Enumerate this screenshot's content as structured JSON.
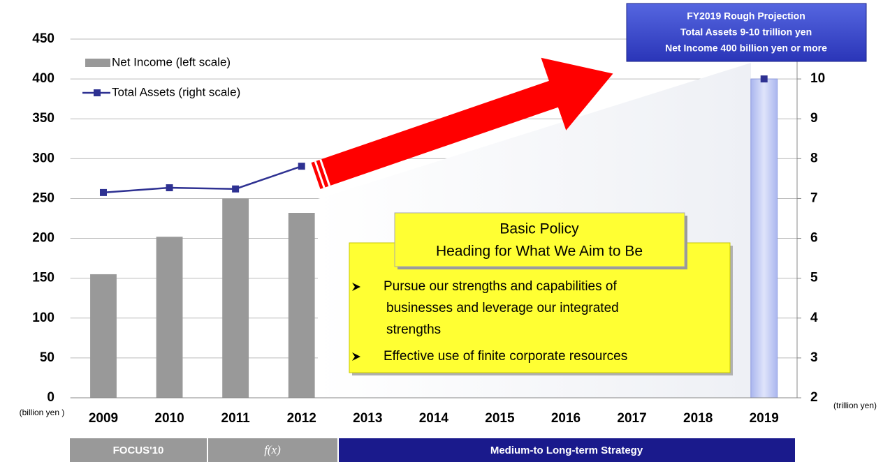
{
  "chart_data": {
    "type": "combo",
    "categories": [
      "2009",
      "2010",
      "2011",
      "2012",
      "2013",
      "2014",
      "2015",
      "2016",
      "2017",
      "2018",
      "2019"
    ],
    "series": [
      {
        "name": "Net Income (left scale)",
        "type": "bar",
        "axis": "y",
        "color": "#999999",
        "colors": [
          "#999999",
          "#999999",
          "#999999",
          "#999999",
          null,
          null,
          null,
          null,
          null,
          null,
          "#c3ccf2"
        ],
        "values": [
          155,
          202,
          250,
          232,
          null,
          null,
          null,
          null,
          null,
          null,
          400
        ]
      },
      {
        "name": "Total Assets (right scale)",
        "type": "line",
        "axis": "y2",
        "color": "#2e3192",
        "values": [
          7.15,
          7.27,
          7.24,
          7.81,
          null,
          null,
          null,
          null,
          null,
          null,
          10
        ]
      }
    ],
    "ylim": [
      0,
      450
    ],
    "yticks": [
      0,
      50,
      100,
      150,
      200,
      250,
      300,
      350,
      400,
      450
    ],
    "y2lim": [
      2,
      11
    ],
    "y2ticks": [
      2,
      3,
      4,
      5,
      6,
      7,
      8,
      9,
      10
    ],
    "grid": true,
    "y_unit": "(billion yen )",
    "y2_unit": "(trillion yen)",
    "projection": [
      "FY2019  Rough Projection",
      "Total Assets  9-10 trillion yen",
      "Net Income  400 billion yen or more"
    ],
    "policy": {
      "title": [
        "Basic Policy",
        "Heading for What We Aim to Be"
      ],
      "bullets": [
        [
          "Pursue our strengths and capabilities of",
          "businesses and leverage our integrated",
          "strengths"
        ],
        [
          "Effective use of finite corporate resources"
        ]
      ]
    },
    "phases": [
      "FOCUS'10",
      "f(x)",
      "Medium-to Long-term Strategy"
    ]
  }
}
